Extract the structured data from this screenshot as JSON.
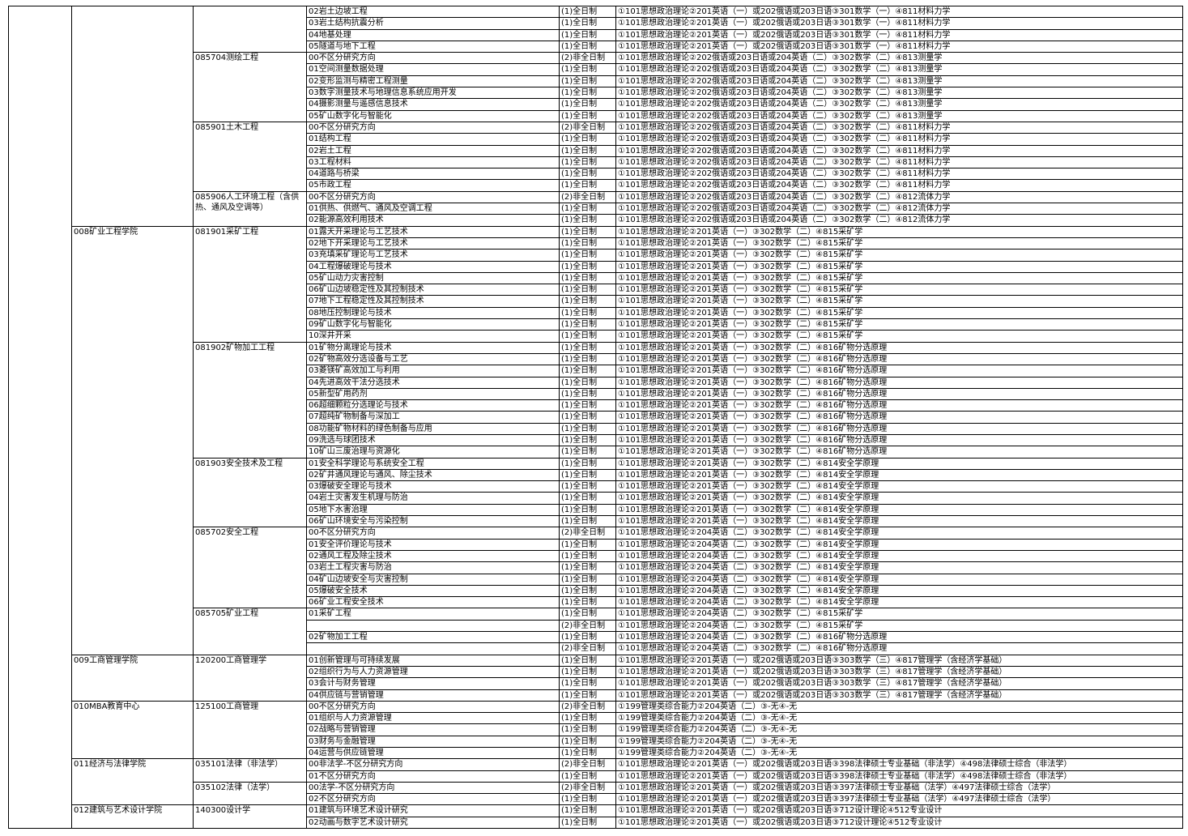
{
  "table": {
    "colleges": [
      {
        "majors": [
          {
            "rows": [
              [
                "02岩土边坡工程",
                "(1)全日制",
                "①101思想政治理论②201英语（一）或202俄语或203日语③301数学（一）④811材料力学"
              ],
              [
                "03岩土结构抗震分析",
                "(1)全日制",
                "①101思想政治理论②201英语（一）或202俄语或203日语③301数学（一）④811材料力学"
              ],
              [
                "04地基处理",
                "(1)全日制",
                "①101思想政治理论②201英语（一）或202俄语或203日语③301数学（一）④811材料力学"
              ],
              [
                "05隧道与地下工程",
                "(1)全日制",
                "①101思想政治理论②201英语（一）或202俄语或203日语③301数学（一）④811材料力学"
              ]
            ]
          },
          {
            "name": "085704测绘工程",
            "rows": [
              [
                "00不区分研究方向",
                "(2)非全日制",
                "①101思想政治理论②202俄语或203日语或204英语（二）③302数学（二）④813测量学"
              ],
              [
                "01空间测量数据处理",
                "(1)全日制",
                "①101思想政治理论②202俄语或203日语或204英语（二）③302数学（二）④813测量学"
              ],
              [
                "02变形监测与精密工程测量",
                "(1)全日制",
                "①101思想政治理论②202俄语或203日语或204英语（二）③302数学（二）④813测量学"
              ],
              [
                "03数字测量技术与地理信息系统应用开发",
                "(1)全日制",
                "①101思想政治理论②202俄语或203日语或204英语（二）③302数学（二）④813测量学"
              ],
              [
                "04摄影测量与遥感信息技术",
                "(1)全日制",
                "①101思想政治理论②202俄语或203日语或204英语（二）③302数学（二）④813测量学"
              ],
              [
                "05矿山数字化与智能化",
                "(1)全日制",
                "①101思想政治理论②202俄语或203日语或204英语（二）③302数学（二）④813测量学"
              ]
            ]
          },
          {
            "name": "085901土木工程",
            "rows": [
              [
                "00不区分研究方向",
                "(2)非全日制",
                "①101思想政治理论②202俄语或203日语或204英语（二）③302数学（二）④811材料力学"
              ],
              [
                "01结构工程",
                "(1)全日制",
                "①101思想政治理论②202俄语或203日语或204英语（二）③302数学（二）④811材料力学"
              ],
              [
                "02岩土工程",
                "(1)全日制",
                "①101思想政治理论②202俄语或203日语或204英语（二）③302数学（二）④811材料力学"
              ],
              [
                "03工程材料",
                "(1)全日制",
                "①101思想政治理论②202俄语或203日语或204英语（二）③302数学（二）④811材料力学"
              ],
              [
                "04道路与桥梁",
                "(1)全日制",
                "①101思想政治理论②202俄语或203日语或204英语（二）③302数学（二）④811材料力学"
              ],
              [
                "05市政工程",
                "(1)全日制",
                "①101思想政治理论②202俄语或203日语或204英语（二）③302数学（二）④811材料力学"
              ]
            ]
          },
          {
            "name": "085906人工环境工程（含供热、通风及空调等）",
            "rows": [
              [
                "00不区分研究方向",
                "(2)非全日制",
                "①101思想政治理论②202俄语或203日语或204英语（二）③302数学（二）④812流体力学"
              ],
              [
                "01供热、供燃气、通风及空调工程",
                "(1)全日制",
                "①101思想政治理论②202俄语或203日语或204英语（二）③302数学（二）④812流体力学"
              ],
              [
                "02能源高效利用技术",
                "(1)全日制",
                "①101思想政治理论②202俄语或203日语或204英语（二）③302数学（二）④812流体力学"
              ]
            ]
          }
        ]
      },
      {
        "name": "008矿业工程学院",
        "majors": [
          {
            "name": "081901采矿工程",
            "rows": [
              [
                "01露天开采理论与工艺技术",
                "(1)全日制",
                "①101思想政治理论②201英语（一）③302数学（二）④815采矿学"
              ],
              [
                "02地下开采理论与工艺技术",
                "(1)全日制",
                "①101思想政治理论②201英语（一）③302数学（二）④815采矿学"
              ],
              [
                "03充填采矿理论与工艺技术",
                "(1)全日制",
                "①101思想政治理论②201英语（一）③302数学（二）④815采矿学"
              ],
              [
                "04工程爆破理论与技术",
                "(1)全日制",
                "①101思想政治理论②201英语（一）③302数学（二）④815采矿学"
              ],
              [
                "05矿山动力灾害控制",
                "(1)全日制",
                "①101思想政治理论②201英语（一）③302数学（二）④815采矿学"
              ],
              [
                "06矿山边坡稳定性及其控制技术",
                "(1)全日制",
                "①101思想政治理论②201英语（一）③302数学（二）④815采矿学"
              ],
              [
                "07地下工程稳定性及其控制技术",
                "(1)全日制",
                "①101思想政治理论②201英语（一）③302数学（二）④815采矿学"
              ],
              [
                "08地压控制理论与技术",
                "(1)全日制",
                "①101思想政治理论②201英语（一）③302数学（二）④815采矿学"
              ],
              [
                "09矿山数字化与智能化",
                "(1)全日制",
                "①101思想政治理论②201英语（一）③302数学（二）④815采矿学"
              ],
              [
                "10深井开采",
                "(1)全日制",
                "①101思想政治理论②201英语（一）③302数学（二）④815采矿学"
              ]
            ]
          },
          {
            "name": "081902矿物加工工程",
            "rows": [
              [
                "01矿物分离理论与技术",
                "(1)全日制",
                "①101思想政治理论②201英语（一）③302数学（二）④816矿物分选原理"
              ],
              [
                "02矿物高效分选设备与工艺",
                "(1)全日制",
                "①101思想政治理论②201英语（一）③302数学（二）④816矿物分选原理"
              ],
              [
                "03菱镁矿高效加工与利用",
                "(1)全日制",
                "①101思想政治理论②201英语（一）③302数学（二）④816矿物分选原理"
              ],
              [
                "04先进高效干法分选技术",
                "(1)全日制",
                "①101思想政治理论②201英语（一）③302数学（二）④816矿物分选原理"
              ],
              [
                "05新型矿用药剂",
                "(1)全日制",
                "①101思想政治理论②201英语（一）③302数学（二）④816矿物分选原理"
              ],
              [
                "06超细颗粒分选理论与技术",
                "(1)全日制",
                "①101思想政治理论②201英语（一）③302数学（二）④816矿物分选原理"
              ],
              [
                "07超纯矿物制备与深加工",
                "(1)全日制",
                "①101思想政治理论②201英语（一）③302数学（二）④816矿物分选原理"
              ],
              [
                "08功能矿物材料的绿色制备与应用",
                "(1)全日制",
                "①101思想政治理论②201英语（一）③302数学（二）④816矿物分选原理"
              ],
              [
                "09洗选与球团技术",
                "(1)全日制",
                "①101思想政治理论②201英语（一）③302数学（二）④816矿物分选原理"
              ],
              [
                "10矿山三废治理与资源化",
                "(1)全日制",
                "①101思想政治理论②201英语（一）③302数学（二）④816矿物分选原理"
              ]
            ]
          },
          {
            "name": "081903安全技术及工程",
            "rows": [
              [
                "01安全科学理论与系统安全工程",
                "(1)全日制",
                "①101思想政治理论②201英语（一）③302数学（二）④814安全学原理"
              ],
              [
                "02矿井通风理论与通风、除尘技术",
                "(1)全日制",
                "①101思想政治理论②201英语（一）③302数学（二）④814安全学原理"
              ],
              [
                "03爆破安全理论与技术",
                "(1)全日制",
                "①101思想政治理论②201英语（一）③302数学（二）④814安全学原理"
              ],
              [
                "04岩土灾害发生机理与防治",
                "(1)全日制",
                "①101思想政治理论②201英语（一）③302数学（二）④814安全学原理"
              ],
              [
                "05地下水害治理",
                "(1)全日制",
                "①101思想政治理论②201英语（一）③302数学（二）④814安全学原理"
              ],
              [
                "06矿山环境安全与污染控制",
                "(1)全日制",
                "①101思想政治理论②201英语（一）③302数学（二）④814安全学原理"
              ]
            ]
          },
          {
            "name": "085702安全工程",
            "rows": [
              [
                "00不区分研究方向",
                "(2)非全日制",
                "①101思想政治理论②204英语（二）③302数学（二）④814安全学原理"
              ],
              [
                "01安全评价理论与技术",
                "(1)全日制",
                "①101思想政治理论②204英语（二）③302数学（二）④814安全学原理"
              ],
              [
                "02通风工程及除尘技术",
                "(1)全日制",
                "①101思想政治理论②204英语（二）③302数学（二）④814安全学原理"
              ],
              [
                "03岩土工程灾害与防治",
                "(1)全日制",
                "①101思想政治理论②204英语（二）③302数学（二）④814安全学原理"
              ],
              [
                "04矿山边坡安全与灾害控制",
                "(1)全日制",
                "①101思想政治理论②204英语（二）③302数学（二）④814安全学原理"
              ],
              [
                "05爆破安全技术",
                "(1)全日制",
                "①101思想政治理论②204英语（二）③302数学（二）④814安全学原理"
              ],
              [
                "06矿业工程安全技术",
                "(1)全日制",
                "①101思想政治理论②204英语（二）③302数学（二）④814安全学原理"
              ]
            ]
          },
          {
            "name": "085705矿业工程",
            "rows": [
              [
                "01采矿工程",
                "(1)全日制",
                "①101思想政治理论②204英语（二）③302数学（二）④815采矿学"
              ],
              [
                null,
                "(2)非全日制",
                "①101思想政治理论②204英语（二）③302数学（二）④815采矿学"
              ],
              [
                "02矿物加工工程",
                "(1)全日制",
                "①101思想政治理论②204英语（二）③302数学（二）④816矿物分选原理"
              ],
              [
                null,
                "(2)非全日制",
                "①101思想政治理论②204英语（二）③302数学（二）④816矿物分选原理"
              ]
            ]
          }
        ]
      },
      {
        "name": "009工商管理学院",
        "majors": [
          {
            "name": "120200工商管理学",
            "rows": [
              [
                "01创新管理与可持续发展",
                "(1)全日制",
                "①101思想政治理论②201英语（一）或202俄语或203日语③303数学（三）④817管理学（含经济学基础）"
              ],
              [
                "02组织行为与人力资源管理",
                "(1)全日制",
                "①101思想政治理论②201英语（一）或202俄语或203日语③303数学（三）④817管理学（含经济学基础）"
              ],
              [
                "03会计与财务管理",
                "(1)全日制",
                "①101思想政治理论②201英语（一）或202俄语或203日语③303数学（三）④817管理学（含经济学基础）"
              ],
              [
                "04供应链与营销管理",
                "(1)全日制",
                "①101思想政治理论②201英语（一）或202俄语或203日语③303数学（三）④817管理学（含经济学基础）"
              ]
            ]
          }
        ]
      },
      {
        "name": "010MBA教育中心",
        "majors": [
          {
            "name": "125100工商管理",
            "rows": [
              [
                "00不区分研究方向",
                "(2)非全日制",
                "①199管理类综合能力②204英语（二）③-无④-无"
              ],
              [
                "01组织与人力资源管理",
                "(1)全日制",
                "①199管理类综合能力②204英语（二）③-无④-无"
              ],
              [
                "02战略与营销管理",
                "(1)全日制",
                "①199管理类综合能力②204英语（二）③-无④-无"
              ],
              [
                "03财务与金融管理",
                "(1)全日制",
                "①199管理类综合能力②204英语（二）③-无④-无"
              ],
              [
                "04运营与供应链管理",
                "(1)全日制",
                "①199管理类综合能力②204英语（二）③-无④-无"
              ]
            ]
          }
        ]
      },
      {
        "name": "011经济与法律学院",
        "majors": [
          {
            "name": "035101法律（非法学）",
            "rows": [
              [
                "00非法学-不区分研究方向",
                "(2)非全日制",
                "①101思想政治理论②201英语（一）或202俄语或203日语③398法律硕士专业基础（非法学）④498法律硕士综合（非法学）"
              ],
              [
                "01不区分研究方向",
                "(1)全日制",
                "①101思想政治理论②201英语（一）或202俄语或203日语③398法律硕士专业基础（非法学）④498法律硕士综合（非法学）"
              ]
            ]
          },
          {
            "name": "035102法律（法学）",
            "rows": [
              [
                "00法学-不区分研究方向",
                "(2)非全日制",
                "①101思想政治理论②201英语（一）或202俄语或203日语③397法律硕士专业基础（法学）④497法律硕士综合（法学）"
              ],
              [
                "02不区分研究方向",
                "(1)全日制",
                "①101思想政治理论②201英语（一）或202俄语或203日语③397法律硕士专业基础（法学）④497法律硕士综合（法学）"
              ]
            ]
          }
        ]
      },
      {
        "name": "012建筑与艺术设计学院",
        "majors": [
          {
            "name": "140300设计学",
            "rows": [
              [
                "01建筑与环境艺术设计研究",
                "(1)全日制",
                "①101思想政治理论②201英语（一）或202俄语或203日语③712设计理论④512专业设计"
              ],
              [
                "02动画与数字艺术设计研究",
                "(1)全日制",
                "①101思想政治理论②201英语（一）或202俄语或203日语③712设计理论④512专业设计"
              ]
            ]
          }
        ]
      }
    ]
  }
}
